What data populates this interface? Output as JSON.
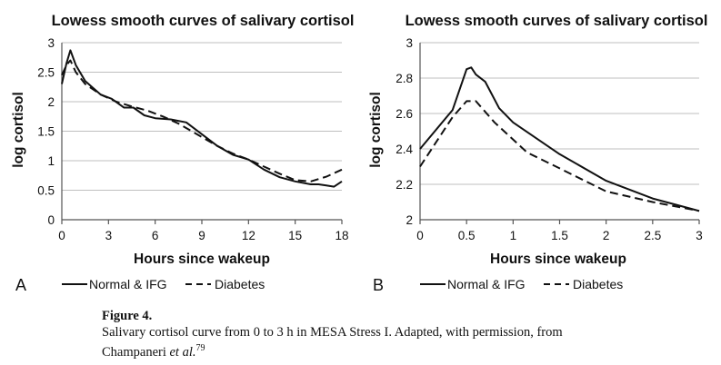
{
  "chart_data": [
    {
      "type": "line",
      "panel": "A",
      "title": "Lowess smooth curves of salivary cortisol",
      "xlabel": "Hours since wakeup",
      "ylabel": "log cortisol",
      "xlim": [
        0,
        18
      ],
      "ylim": [
        0,
        3
      ],
      "xticks": [
        0,
        3,
        6,
        9,
        12,
        15,
        18
      ],
      "yticks": [
        0,
        0.5,
        1,
        1.5,
        2,
        2.5,
        3
      ],
      "grid": "horizontal",
      "legend": "bottom",
      "series": [
        {
          "name": "Normal & IFG",
          "style": "solid",
          "x": [
            0,
            0.3,
            0.55,
            0.9,
            1.5,
            2.5,
            3.2,
            4,
            4.6,
            5.3,
            6,
            7,
            8,
            9,
            10,
            11,
            12,
            13,
            14,
            15,
            16,
            16.5,
            17,
            17.5,
            18
          ],
          "y": [
            2.3,
            2.65,
            2.87,
            2.62,
            2.35,
            2.12,
            2.05,
            1.9,
            1.9,
            1.77,
            1.72,
            1.7,
            1.65,
            1.45,
            1.25,
            1.1,
            1.02,
            0.85,
            0.72,
            0.65,
            0.6,
            0.6,
            0.58,
            0.56,
            0.65
          ]
        },
        {
          "name": "Diabetes",
          "style": "dashed",
          "x": [
            0,
            0.3,
            0.55,
            0.9,
            1.5,
            2.5,
            3.5,
            4.5,
            5.5,
            6.5,
            7.5,
            9,
            10,
            11,
            12,
            13,
            14,
            15,
            16,
            17,
            18
          ],
          "y": [
            2.45,
            2.62,
            2.7,
            2.5,
            2.3,
            2.12,
            2.0,
            1.92,
            1.85,
            1.75,
            1.63,
            1.4,
            1.25,
            1.12,
            1.02,
            0.9,
            0.78,
            0.67,
            0.65,
            0.73,
            0.85
          ]
        }
      ]
    },
    {
      "type": "line",
      "panel": "B",
      "title": "Lowess smooth curves of salivary cortisol",
      "xlabel": "Hours since wakeup",
      "ylabel": "log cortisol",
      "xlim": [
        0,
        3
      ],
      "ylim": [
        2,
        3
      ],
      "xticks": [
        "0",
        "0.5",
        "1",
        "1.5",
        "2",
        "2.5",
        "3"
      ],
      "yticks": [
        "2",
        "2.2",
        "2.4",
        "2.6",
        "2.8",
        "3"
      ],
      "grid": "horizontal",
      "legend": "bottom",
      "series": [
        {
          "name": "Normal & IFG",
          "style": "solid",
          "x": [
            0,
            0.35,
            0.5,
            0.55,
            0.6,
            0.7,
            0.85,
            1.0,
            1.5,
            2.0,
            2.5,
            3.0
          ],
          "y": [
            2.4,
            2.62,
            2.85,
            2.86,
            2.82,
            2.78,
            2.63,
            2.55,
            2.37,
            2.22,
            2.12,
            2.05
          ]
        },
        {
          "name": "Diabetes",
          "style": "dashed",
          "x": [
            0,
            0.35,
            0.5,
            0.6,
            0.8,
            1.15,
            1.5,
            2.0,
            2.5,
            3.0
          ],
          "y": [
            2.3,
            2.58,
            2.67,
            2.67,
            2.55,
            2.38,
            2.29,
            2.16,
            2.1,
            2.05
          ]
        }
      ]
    }
  ],
  "caption": {
    "figure_label": "Figure 4.",
    "text": "Salivary cortisol curve from 0 to 3 h in MESA Stress I. Adapted, with permission, from",
    "author": "Champaneri ",
    "etal": "et al.",
    "ref": "79"
  }
}
